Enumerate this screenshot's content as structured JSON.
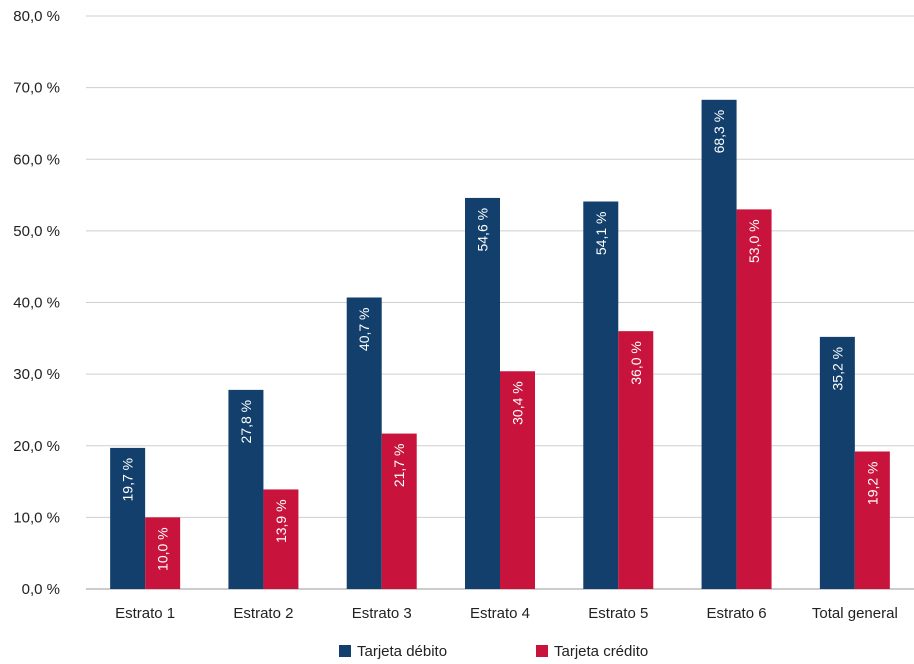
{
  "chart_data": {
    "type": "bar",
    "title": "",
    "xlabel": "",
    "ylabel": "",
    "categories": [
      "Estrato 1",
      "Estrato 2",
      "Estrato 3",
      "Estrato 4",
      "Estrato 5",
      "Estrato 6",
      "Total general"
    ],
    "series": [
      {
        "name": "Tarjeta débito",
        "color": "#123f6b",
        "values": [
          19.7,
          27.8,
          40.7,
          54.6,
          54.1,
          68.3,
          35.2
        ],
        "labels": [
          "19,7 %",
          "27,8 %",
          "40,7 %",
          "54,6 %",
          "54,1 %",
          "68,3 %",
          "35,2 %"
        ]
      },
      {
        "name": "Tarjeta crédito",
        "color": "#c8143c",
        "values": [
          10.0,
          13.9,
          21.7,
          30.4,
          36.0,
          53.0,
          19.2
        ],
        "labels": [
          "10,0 %",
          "13,9 %",
          "21,7 %",
          "30,4 %",
          "36,0 %",
          "53,0 %",
          "19,2 %"
        ]
      }
    ],
    "ylim": [
      0,
      80
    ],
    "yticks": [
      0,
      10,
      20,
      30,
      40,
      50,
      60,
      70,
      80
    ],
    "ytick_labels": [
      "0,0 %",
      "10,0 %",
      "20,0 %",
      "30,0 %",
      "40,0 %",
      "50,0 %",
      "60,0 %",
      "70,0 %",
      "80,0 %"
    ],
    "grid": true,
    "legend_position": "bottom-center"
  }
}
